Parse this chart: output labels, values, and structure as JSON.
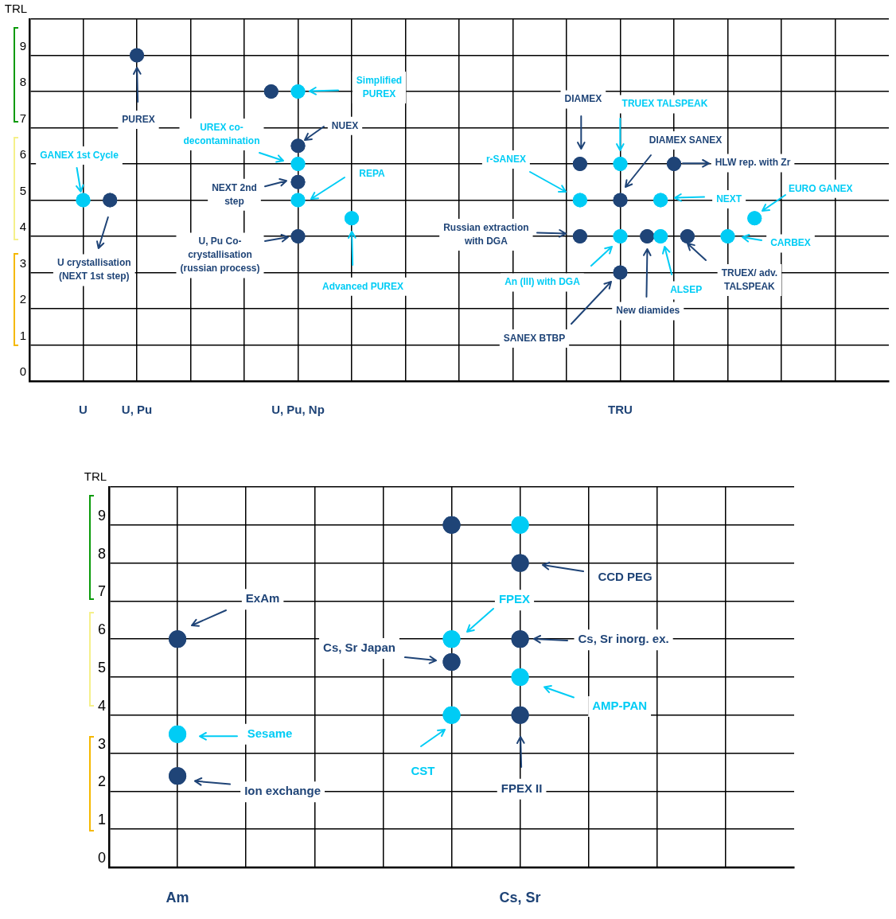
{
  "chart_data": [
    {
      "type": "scatter",
      "ylabel": "TRL",
      "categories": [
        "U",
        null,
        null,
        null,
        "U, Pu",
        null,
        null,
        null,
        null,
        null,
        null,
        null,
        null,
        null,
        null,
        null,
        "U, Pu, Np",
        null,
        null,
        null,
        null,
        null,
        null,
        null,
        null,
        null,
        null,
        null,
        null,
        null,
        null,
        null,
        null,
        null,
        null,
        null,
        null,
        null,
        null,
        null,
        "TRU",
        null,
        null,
        null,
        null,
        null,
        null,
        null,
        null,
        null,
        null,
        null,
        null,
        null,
        null,
        null,
        null
      ],
      "ylim": [
        0,
        10
      ],
      "yticks": [
        0,
        1,
        2,
        3,
        4,
        5,
        6,
        7,
        8,
        9,
        {
          "value": 10,
          "label": null
        }
      ],
      "grid": true,
      "marker": "circle",
      "series": [
        {
          "color": "#1f4477",
          "values": [
            null,
            null,
            5,
            null,
            9,
            null,
            null,
            null,
            null,
            null,
            null,
            null,
            null,
            null,
            8,
            null,
            6.5,
            null,
            null,
            null,
            null,
            null,
            null,
            null,
            null,
            null,
            null,
            null,
            null,
            null,
            null,
            null,
            null,
            null,
            null,
            null,
            null,
            6,
            null,
            null,
            5,
            null,
            4,
            null,
            6,
            4,
            null,
            null,
            null,
            null,
            null,
            null,
            null,
            null,
            null,
            null,
            null
          ]
        },
        {
          "color": "#1f4477",
          "values": [
            null,
            null,
            null,
            null,
            null,
            null,
            null,
            null,
            null,
            null,
            null,
            null,
            null,
            null,
            null,
            null,
            5.5,
            null,
            null,
            null,
            null,
            null,
            null,
            null,
            null,
            null,
            null,
            null,
            null,
            null,
            null,
            null,
            null,
            null,
            null,
            null,
            null,
            4,
            null,
            null,
            3,
            null,
            null,
            null,
            null,
            null,
            null,
            null,
            null,
            null,
            null,
            null,
            null,
            null,
            null,
            null,
            null
          ]
        },
        {
          "color": "#1f4477",
          "values": [
            null,
            null,
            null,
            null,
            null,
            null,
            null,
            null,
            null,
            null,
            null,
            null,
            null,
            null,
            null,
            null,
            4,
            null,
            null,
            null,
            null,
            null,
            null,
            null,
            null,
            null,
            null,
            null,
            null,
            null,
            null,
            null,
            null,
            null,
            null,
            null,
            null,
            null,
            null,
            null,
            null,
            null,
            null,
            null,
            null,
            null,
            null,
            null,
            null,
            null,
            null,
            null,
            null,
            null,
            null,
            null,
            null
          ]
        },
        {
          "color": "#00ccf5",
          "values": [
            5,
            null,
            null,
            null,
            null,
            null,
            null,
            null,
            null,
            null,
            null,
            null,
            null,
            null,
            null,
            null,
            8,
            null,
            null,
            null,
            4.5,
            null,
            null,
            null,
            null,
            null,
            null,
            null,
            null,
            null,
            null,
            null,
            null,
            null,
            null,
            null,
            null,
            5,
            null,
            null,
            6,
            null,
            null,
            5,
            null,
            null,
            null,
            null,
            4,
            null,
            4.5,
            null,
            null,
            null,
            null,
            null,
            null
          ]
        },
        {
          "color": "#00ccf5",
          "values": [
            null,
            null,
            null,
            null,
            null,
            null,
            null,
            null,
            null,
            null,
            null,
            null,
            null,
            null,
            null,
            null,
            6,
            null,
            null,
            null,
            null,
            null,
            null,
            null,
            null,
            null,
            null,
            null,
            null,
            null,
            null,
            null,
            null,
            null,
            null,
            null,
            null,
            null,
            null,
            null,
            4,
            null,
            null,
            4,
            null,
            null,
            null,
            null,
            null,
            null,
            null,
            null,
            null,
            null,
            null,
            null,
            null
          ]
        },
        {
          "color": "#00ccf5",
          "values": [
            null,
            null,
            null,
            null,
            null,
            null,
            null,
            null,
            null,
            null,
            null,
            null,
            null,
            null,
            null,
            null,
            5,
            null,
            null,
            null,
            null,
            null,
            null,
            null,
            null,
            null,
            null,
            null,
            null,
            null,
            null,
            null,
            null,
            null,
            null,
            null,
            null,
            null,
            null,
            null,
            null,
            null,
            null,
            null,
            null,
            null,
            null,
            null,
            null,
            null,
            null,
            null,
            null,
            null,
            null,
            null,
            null
          ]
        }
      ],
      "annotations": [
        "GANEX 1st Cycle",
        "U crystallisation (NEXT 1st step)",
        "PUREX",
        "Simplified PUREX",
        "NUEX",
        "UREX co-decontamination",
        "NEXT 2nd step",
        "REPA",
        "U, Pu Co-crystallisation (russian process)",
        "Advanced PUREX",
        "DIAMEX",
        "TRUEX TALSPEAK",
        "HLW rep. with Zr",
        "DIAMEX SANEX",
        "r-SANEX",
        "NEXT",
        "EURO GANEX",
        "Russian extraction with DGA",
        "An (III) with DGA",
        "New diamides",
        "ALSEP",
        "TRUEX/ adv. TALSPEAK",
        "CARBEX",
        "SANEX BTBP"
      ]
    },
    {
      "type": "scatter",
      "ylabel": "TRL",
      "categories": [
        "Am",
        null,
        null,
        null,
        null,
        "Cs, Sr",
        null,
        null,
        null
      ],
      "ylim": [
        0,
        10
      ],
      "yticks": [
        0,
        1,
        2,
        3,
        4,
        5,
        6,
        7,
        8,
        9,
        {
          "value": 10,
          "label": null
        }
      ],
      "grid": true,
      "marker": "circle",
      "series": [
        {
          "color": "#1f4477",
          "values": [
            6,
            null,
            null,
            null,
            9,
            8,
            null,
            null,
            null
          ]
        },
        {
          "color": "#1f4477",
          "values": [
            2.4,
            null,
            null,
            null,
            5.4,
            6,
            null,
            null,
            null
          ]
        },
        {
          "color": "#1f4477",
          "values": [
            null,
            null,
            null,
            null,
            null,
            4,
            null,
            null,
            null
          ]
        },
        {
          "color": "#00ccf5",
          "values": [
            3.5,
            null,
            null,
            null,
            6,
            9,
            null,
            null,
            null
          ]
        },
        {
          "color": "#00ccf5",
          "values": [
            null,
            null,
            null,
            null,
            4,
            5,
            null,
            null,
            null
          ]
        }
      ],
      "annotations": [
        "ExAm",
        "Sesame",
        "Ion exchange",
        "CCD PEG",
        "FPEX",
        "Cs, Sr inorg. ex.",
        "Cs, Sr Japan",
        "AMP-PAN",
        "CST",
        "FPEX II"
      ]
    }
  ]
}
